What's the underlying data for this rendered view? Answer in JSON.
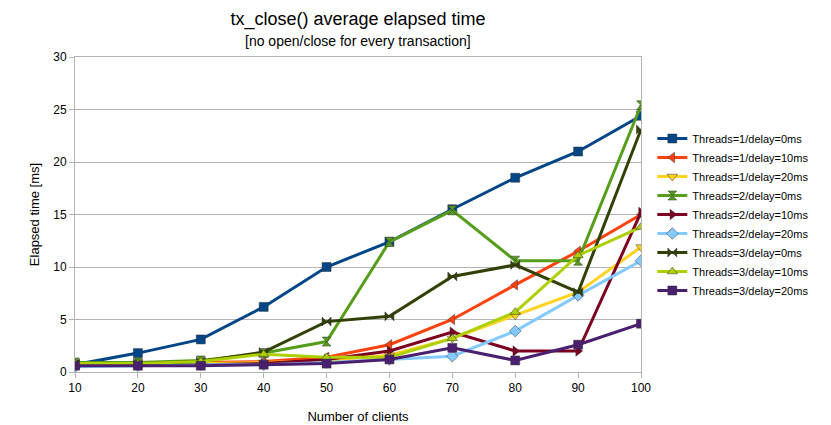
{
  "chart_data": {
    "type": "line",
    "title": "tx_close() average elapsed time",
    "subtitle": "[no open/close for every transaction]",
    "x_label": "Number of clients",
    "y_label": "Elapsed time [ms]",
    "x": [
      10,
      20,
      30,
      40,
      50,
      60,
      70,
      80,
      90,
      100
    ],
    "xlim": [
      10,
      100
    ],
    "xticks": [
      10,
      20,
      30,
      40,
      50,
      60,
      70,
      80,
      90,
      100
    ],
    "ylim": [
      0,
      30
    ],
    "yticks": [
      0,
      5,
      10,
      15,
      20,
      25,
      30
    ],
    "grid": true,
    "legend": "right",
    "series": [
      {
        "name": "Threads=1/delay=0ms",
        "color": "#004586",
        "marker": "square",
        "values": [
          0.7,
          1.8,
          3.1,
          6.2,
          10.0,
          12.4,
          15.5,
          18.5,
          21.0,
          24.4
        ]
      },
      {
        "name": "Threads=1/delay=10ms",
        "color": "#ff420e",
        "marker": "triangle-left",
        "values": [
          0.8,
          0.8,
          0.9,
          1.0,
          1.4,
          2.6,
          5.0,
          8.3,
          11.5,
          15.0
        ]
      },
      {
        "name": "Threads=1/delay=20ms",
        "color": "#ffd320",
        "marker": "triangle-down",
        "values": [
          0.7,
          0.7,
          0.8,
          0.9,
          1.1,
          1.6,
          3.2,
          5.4,
          7.6,
          11.9
        ]
      },
      {
        "name": "Threads=2/delay=0ms",
        "color": "#579d1c",
        "marker": "hourglass",
        "values": [
          0.9,
          0.9,
          1.1,
          1.8,
          2.9,
          12.4,
          15.4,
          10.6,
          10.6,
          25.4
        ]
      },
      {
        "name": "Threads=2/delay=10ms",
        "color": "#7e0021",
        "marker": "triangle-right",
        "values": [
          0.8,
          0.7,
          0.7,
          0.8,
          1.2,
          2.0,
          3.8,
          2.0,
          2.0,
          15.2
        ]
      },
      {
        "name": "Threads=2/delay=20ms",
        "color": "#83caff",
        "marker": "diamond",
        "values": [
          0.5,
          0.6,
          0.7,
          0.7,
          0.9,
          1.2,
          1.5,
          3.9,
          7.3,
          10.6
        ]
      },
      {
        "name": "Threads=3/delay=0ms",
        "color": "#314004",
        "marker": "bowtie",
        "values": [
          0.8,
          0.8,
          1.0,
          1.9,
          4.8,
          5.3,
          9.1,
          10.2,
          7.6,
          23.1
        ]
      },
      {
        "name": "Threads=3/delay=10ms",
        "color": "#aecf00",
        "marker": "triangle-up",
        "values": [
          0.8,
          0.8,
          1.0,
          1.7,
          1.4,
          1.4,
          3.2,
          5.7,
          11.1,
          13.8
        ]
      },
      {
        "name": "Threads=3/delay=20ms",
        "color": "#4b1f6f",
        "marker": "square",
        "values": [
          0.6,
          0.6,
          0.6,
          0.7,
          0.8,
          1.2,
          2.3,
          1.1,
          2.6,
          4.6
        ]
      }
    ]
  }
}
